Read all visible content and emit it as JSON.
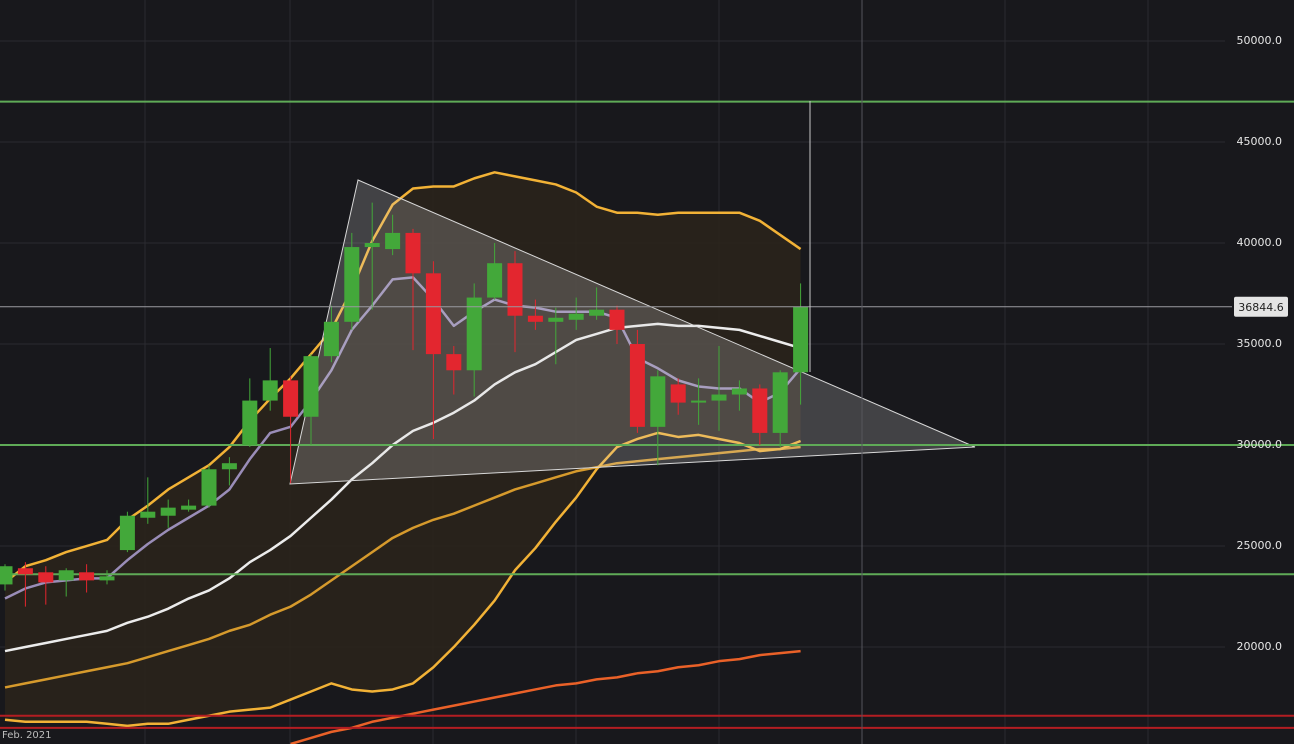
{
  "chart_data": {
    "type": "candlestick",
    "date_label": "Feb. 2021",
    "categories": [
      null,
      null,
      null,
      null,
      null,
      null,
      null,
      null,
      null,
      null,
      null,
      null,
      null,
      null,
      null,
      null,
      null,
      null,
      null,
      null,
      null,
      null,
      null,
      null,
      null,
      null,
      null,
      null,
      null,
      null,
      null,
      null,
      null,
      null,
      null,
      null,
      null,
      null,
      null,
      null
    ],
    "open": [
      23100,
      23900,
      23700,
      23300,
      23700,
      23300,
      24800,
      26400,
      26500,
      26800,
      27000,
      28800,
      30000,
      32200,
      33200,
      31400,
      34400,
      36100,
      39800,
      39700,
      40500,
      38500,
      34500,
      33700,
      37300,
      39000,
      36400,
      36100,
      36200,
      36400,
      36700,
      35000,
      30900,
      33000,
      32100,
      32200,
      32500,
      32800,
      30600,
      33600
    ],
    "high": [
      24100,
      24200,
      24000,
      23900,
      24100,
      23800,
      26700,
      28400,
      27300,
      27300,
      29000,
      29400,
      33300,
      34800,
      33400,
      34500,
      36900,
      40500,
      42000,
      41400,
      40700,
      39100,
      34900,
      38000,
      40000,
      39600,
      37200,
      36800,
      37300,
      37800,
      36900,
      35700,
      33700,
      33300,
      33300,
      34900,
      33200,
      33000,
      33700,
      38000
    ],
    "low": [
      22800,
      22000,
      22100,
      22500,
      22700,
      23100,
      24700,
      26100,
      25900,
      26700,
      26900,
      28000,
      29900,
      31700,
      28100,
      30000,
      34100,
      35700,
      36700,
      39400,
      34700,
      30300,
      32500,
      32400,
      37200,
      34600,
      35700,
      34000,
      35700,
      36200,
      35000,
      30600,
      29000,
      31500,
      31000,
      30700,
      31700,
      30000,
      29900,
      32000
    ],
    "close": [
      24000,
      23600,
      23200,
      23800,
      23300,
      23500,
      26500,
      26700,
      26900,
      27000,
      28800,
      29100,
      32200,
      33200,
      31400,
      34400,
      36100,
      39800,
      40000,
      40500,
      38500,
      34500,
      33700,
      37300,
      39000,
      36400,
      36100,
      36300,
      36500,
      36700,
      35700,
      30900,
      33400,
      32100,
      32200,
      32500,
      32800,
      30600,
      33600,
      36844.6
    ],
    "up_color": "#43a83a",
    "down_color": "#e3262f",
    "bands": {
      "fill": "#2a241c",
      "upper": {
        "color": "#f2b236",
        "values": [
          23200,
          24000,
          24300,
          24700,
          25000,
          25300,
          26300,
          27000,
          27800,
          28400,
          29000,
          29900,
          31200,
          32300,
          33300,
          34500,
          35700,
          37700,
          40100,
          41900,
          42700,
          42800,
          42800,
          43200,
          43500,
          43300,
          43100,
          42900,
          42500,
          41800,
          41500,
          41500,
          41400,
          41500,
          41500,
          41500,
          41500,
          41100,
          40400,
          39700
        ]
      },
      "middle": {
        "color": "#ececec",
        "values": [
          19800,
          20000,
          20200,
          20400,
          20600,
          20800,
          21200,
          21500,
          21900,
          22400,
          22800,
          23400,
          24200,
          24800,
          25500,
          26400,
          27300,
          28300,
          29100,
          30000,
          30700,
          31100,
          31600,
          32200,
          33000,
          33600,
          34000,
          34600,
          35200,
          35500,
          35800,
          35900,
          36000,
          35900,
          35900,
          35800,
          35700,
          35400,
          35100,
          34800
        ]
      },
      "lower": {
        "color": "#f2b236",
        "values": [
          16400,
          16300,
          16300,
          16300,
          16300,
          16200,
          16100,
          16200,
          16200,
          16400,
          16600,
          16800,
          16900,
          17000,
          17400,
          17800,
          18200,
          17900,
          17800,
          17900,
          18200,
          19000,
          20000,
          21100,
          22300,
          23800,
          24900,
          26200,
          27400,
          28800,
          29900,
          30300,
          30600,
          30400,
          30500,
          30300,
          30100,
          29700,
          29800,
          30200
        ]
      }
    },
    "overlays": [
      {
        "color": "#9a8db8",
        "values": [
          22400,
          22900,
          23200,
          23300,
          23400,
          23400,
          24300,
          25100,
          25800,
          26400,
          27000,
          27800,
          29300,
          30600,
          30900,
          32200,
          33700,
          35700,
          36900,
          38200,
          38300,
          37200,
          35900,
          36600,
          37200,
          36900,
          36800,
          36600,
          36600,
          36600,
          36300,
          34300,
          33800,
          33200,
          32900,
          32800,
          32800,
          32100,
          32600,
          33800
        ]
      },
      {
        "color": "#d69a2c",
        "values": [
          18000,
          18200,
          18400,
          18600,
          18800,
          19000,
          19200,
          19500,
          19800,
          20100,
          20400,
          20800,
          21100,
          21600,
          22000,
          22600,
          23300,
          24000,
          24700,
          25400,
          25900,
          26300,
          26600,
          27000,
          27400,
          27800,
          28100,
          28400,
          28700,
          28900,
          29100,
          29200,
          29300,
          29400,
          29500,
          29600,
          29700,
          29800,
          29800,
          29900
        ]
      },
      {
        "color": "#ea6128",
        "values": [
          null,
          null,
          null,
          null,
          null,
          null,
          null,
          null,
          null,
          null,
          null,
          null,
          null,
          null,
          15200,
          15500,
          15800,
          16000,
          16300,
          16500,
          16700,
          16900,
          17100,
          17300,
          17500,
          17700,
          17900,
          18100,
          18200,
          18400,
          18500,
          18700,
          18800,
          19000,
          19100,
          19300,
          19400,
          19600,
          19700,
          19800
        ]
      }
    ],
    "levels": [
      {
        "value": 47000,
        "color": "#5faa57"
      },
      {
        "value": 30000,
        "color": "#5faa57"
      },
      {
        "value": 23600,
        "color": "#5faa57"
      },
      {
        "value": 16600,
        "color": "#b31d22"
      },
      {
        "value": 16000,
        "color": "#b31d22"
      }
    ],
    "ylim": [
      15200,
      52030
    ],
    "yticks": [
      {
        "value": 20000,
        "label": "20000.0"
      },
      {
        "value": 25000,
        "label": "25000.0"
      },
      {
        "value": 30000,
        "label": "30000.0"
      },
      {
        "value": 35000,
        "label": "35000.0"
      },
      {
        "value": 40000,
        "label": "40000.0"
      },
      {
        "value": 45000,
        "label": "45000.0"
      },
      {
        "value": 50000,
        "label": "50000.0"
      }
    ],
    "grid": true
  }
}
